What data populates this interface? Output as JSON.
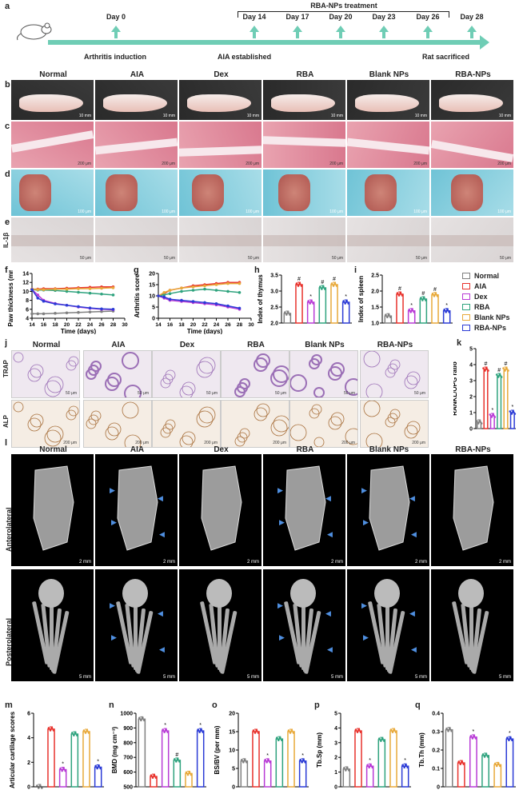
{
  "panels": {
    "a": "a",
    "b": "b",
    "c": "c",
    "d": "d",
    "e": "e",
    "f": "f",
    "g": "g",
    "h": "h",
    "i": "i",
    "j": "j",
    "k": "k",
    "l": "l",
    "m": "m",
    "n": "n",
    "o": "o",
    "p": "p",
    "q": "q"
  },
  "timeline": {
    "treatment_label": "RBA-NPs treatment",
    "days": [
      "Day 0",
      "Day 14",
      "Day 17",
      "Day 20",
      "Day 23",
      "Day 26",
      "Day 28"
    ],
    "events": [
      "Arthritis induction",
      "AIA established",
      "Rat sacrificed"
    ]
  },
  "groups": [
    "Normal",
    "AIA",
    "Dex",
    "RBA",
    "Blank NPs",
    "RBA-NPs"
  ],
  "row_labels": {
    "e": "IL-1β",
    "j1": "TRAP",
    "j2": "ALP",
    "l1": "Anterolateral",
    "l2": "Posterolateral"
  },
  "scales": {
    "b": "10 mm",
    "c": "200 μm",
    "d": "100 μm",
    "e": "50 μm",
    "j": "50 μm",
    "j2": "200 μm",
    "l1": "2 mm",
    "l2": "5 mm"
  },
  "colors": {
    "Normal": "#808080",
    "AIA": "#e8322c",
    "Dex": "#b83bd6",
    "RBA": "#2fa37e",
    "Blank NPs": "#e8a93a",
    "RBA-NPs": "#2b3bd6"
  },
  "chart_data": [
    {
      "id": "f",
      "type": "line",
      "xlabel": "Time (days)",
      "ylabel": "Paw thickness (mm)",
      "xlim": [
        14,
        30
      ],
      "ylim": [
        4,
        14
      ],
      "xticks": [
        14,
        16,
        18,
        20,
        22,
        24,
        26,
        28,
        30
      ],
      "yticks": [
        4,
        6,
        8,
        10,
        12,
        14
      ],
      "x": [
        14,
        15,
        16,
        18,
        20,
        22,
        24,
        26,
        28
      ],
      "series": [
        {
          "name": "Normal",
          "values": [
            5.0,
            5.0,
            5.0,
            5.1,
            5.2,
            5.3,
            5.4,
            5.5,
            5.6
          ]
        },
        {
          "name": "AIA",
          "values": [
            10.5,
            10.5,
            10.6,
            10.6,
            10.7,
            10.8,
            10.9,
            11.0,
            11.0
          ]
        },
        {
          "name": "Dex",
          "values": [
            10.4,
            9.2,
            8.0,
            7.3,
            6.9,
            6.5,
            6.2,
            6.0,
            5.9
          ]
        },
        {
          "name": "RBA",
          "values": [
            10.4,
            10.3,
            10.3,
            10.2,
            10.0,
            9.8,
            9.6,
            9.4,
            9.2
          ]
        },
        {
          "name": "Blank NPs",
          "values": [
            10.5,
            10.4,
            10.4,
            10.5,
            10.5,
            10.6,
            10.6,
            10.7,
            10.8
          ]
        },
        {
          "name": "RBA-NPs",
          "values": [
            10.4,
            8.5,
            7.8,
            7.2,
            6.9,
            6.6,
            6.3,
            6.1,
            6.0
          ]
        }
      ]
    },
    {
      "id": "g",
      "type": "line",
      "xlabel": "Time (days)",
      "ylabel": "Arthritis score",
      "xlim": [
        14,
        30
      ],
      "ylim": [
        0,
        20
      ],
      "xticks": [
        14,
        16,
        18,
        20,
        22,
        24,
        26,
        28,
        30
      ],
      "yticks": [
        0,
        5,
        10,
        15,
        20
      ],
      "x": [
        14,
        15,
        16,
        18,
        20,
        22,
        24,
        26,
        28
      ],
      "series": [
        {
          "name": "AIA",
          "values": [
            10,
            11,
            12.5,
            13.5,
            14.5,
            15,
            15.5,
            16,
            16
          ]
        },
        {
          "name": "Dex",
          "values": [
            10,
            9,
            8,
            7.5,
            7,
            6.5,
            6,
            5,
            4
          ]
        },
        {
          "name": "RBA",
          "values": [
            10,
            10.5,
            11,
            12,
            12.5,
            13,
            12.5,
            12,
            11.5
          ]
        },
        {
          "name": "Blank NPs",
          "values": [
            10,
            11.5,
            12.5,
            13.5,
            14,
            14.5,
            15,
            15.5,
            15.5
          ]
        },
        {
          "name": "RBA-NPs",
          "values": [
            10,
            9.5,
            8.5,
            8,
            7.5,
            7,
            6.5,
            5.5,
            4.5
          ]
        }
      ]
    },
    {
      "id": "h",
      "type": "bar",
      "ylabel": "Index of thymus",
      "ylim": [
        2.0,
        3.5
      ],
      "yticks": [
        2.0,
        2.5,
        3.0,
        3.5
      ],
      "categories": [
        "Normal",
        "AIA",
        "Dex",
        "RBA",
        "Blank NPs",
        "RBA-NPs"
      ],
      "values": [
        2.3,
        3.2,
        2.65,
        3.1,
        3.2,
        2.65
      ],
      "marks": [
        "",
        "#",
        "*",
        "#",
        "#",
        "*"
      ]
    },
    {
      "id": "i",
      "type": "bar",
      "ylabel": "Index of spleen",
      "ylim": [
        1.0,
        2.5
      ],
      "yticks": [
        1.0,
        1.5,
        2.0,
        2.5
      ],
      "categories": [
        "Normal",
        "AIA",
        "Dex",
        "RBA",
        "Blank NPs",
        "RBA-NPs"
      ],
      "values": [
        1.22,
        1.9,
        1.38,
        1.75,
        1.88,
        1.38
      ],
      "marks": [
        "",
        "#",
        "*",
        "#",
        "#",
        "*"
      ]
    },
    {
      "id": "k",
      "type": "bar",
      "ylabel": "RANKL/OPG ratio",
      "ylim": [
        0,
        5
      ],
      "yticks": [
        0,
        1,
        2,
        3,
        4,
        5
      ],
      "categories": [
        "Normal",
        "AIA",
        "Dex",
        "RBA",
        "Blank NPs",
        "RBA-NPs"
      ],
      "values": [
        0.4,
        3.7,
        0.8,
        3.3,
        3.7,
        1.0
      ],
      "marks": [
        "",
        "#",
        "*",
        "#",
        "#",
        "*"
      ]
    },
    {
      "id": "m",
      "type": "bar",
      "ylabel": "Articular cartilage scores",
      "ylim": [
        0,
        6
      ],
      "yticks": [
        0,
        2,
        4,
        6
      ],
      "categories": [
        "Normal",
        "AIA",
        "Dex",
        "RBA",
        "Blank NPs",
        "RBA-NPs"
      ],
      "values": [
        0,
        4.7,
        1.4,
        4.3,
        4.5,
        1.6
      ],
      "marks": [
        "",
        "",
        "*",
        "",
        "",
        "*"
      ]
    },
    {
      "id": "n",
      "type": "bar",
      "ylabel": "BMD (mg cm⁻³)",
      "ylim": [
        500,
        1000
      ],
      "yticks": [
        500,
        600,
        700,
        800,
        900,
        1000
      ],
      "categories": [
        "Normal",
        "AIA",
        "Dex",
        "RBA",
        "Blank NPs",
        "RBA-NPs"
      ],
      "values": [
        960,
        570,
        880,
        680,
        590,
        880
      ],
      "marks": [
        "",
        "",
        "*",
        "#",
        "",
        "*"
      ]
    },
    {
      "id": "o",
      "type": "bar",
      "ylabel": "BS/BV (per mm)",
      "ylim": [
        0,
        20
      ],
      "yticks": [
        0,
        5,
        10,
        15,
        20
      ],
      "categories": [
        "Normal",
        "AIA",
        "Dex",
        "RBA",
        "Blank NPs",
        "RBA-NPs"
      ],
      "values": [
        7,
        15,
        7,
        13,
        15,
        7
      ],
      "marks": [
        "",
        "",
        "*",
        "",
        "",
        "*"
      ]
    },
    {
      "id": "p",
      "type": "bar",
      "ylabel": "Tb.Sp (mm)",
      "ylim": [
        0,
        5
      ],
      "yticks": [
        0,
        1,
        2,
        3,
        4,
        5
      ],
      "categories": [
        "Normal",
        "AIA",
        "Dex",
        "RBA",
        "Blank NPs",
        "RBA-NPs"
      ],
      "values": [
        1.2,
        3.8,
        1.4,
        3.2,
        3.8,
        1.4
      ],
      "marks": [
        "",
        "",
        "*",
        "",
        "",
        "*"
      ]
    },
    {
      "id": "q",
      "type": "bar",
      "ylabel": "Tb.Th (mm)",
      "ylim": [
        0,
        0.4
      ],
      "yticks": [
        0,
        0.1,
        0.2,
        0.3,
        0.4
      ],
      "categories": [
        "Normal",
        "AIA",
        "Dex",
        "RBA",
        "Blank NPs",
        "RBA-NPs"
      ],
      "values": [
        0.31,
        0.13,
        0.27,
        0.17,
        0.12,
        0.26
      ],
      "marks": [
        "",
        "",
        "*",
        "",
        "",
        "*"
      ]
    }
  ]
}
